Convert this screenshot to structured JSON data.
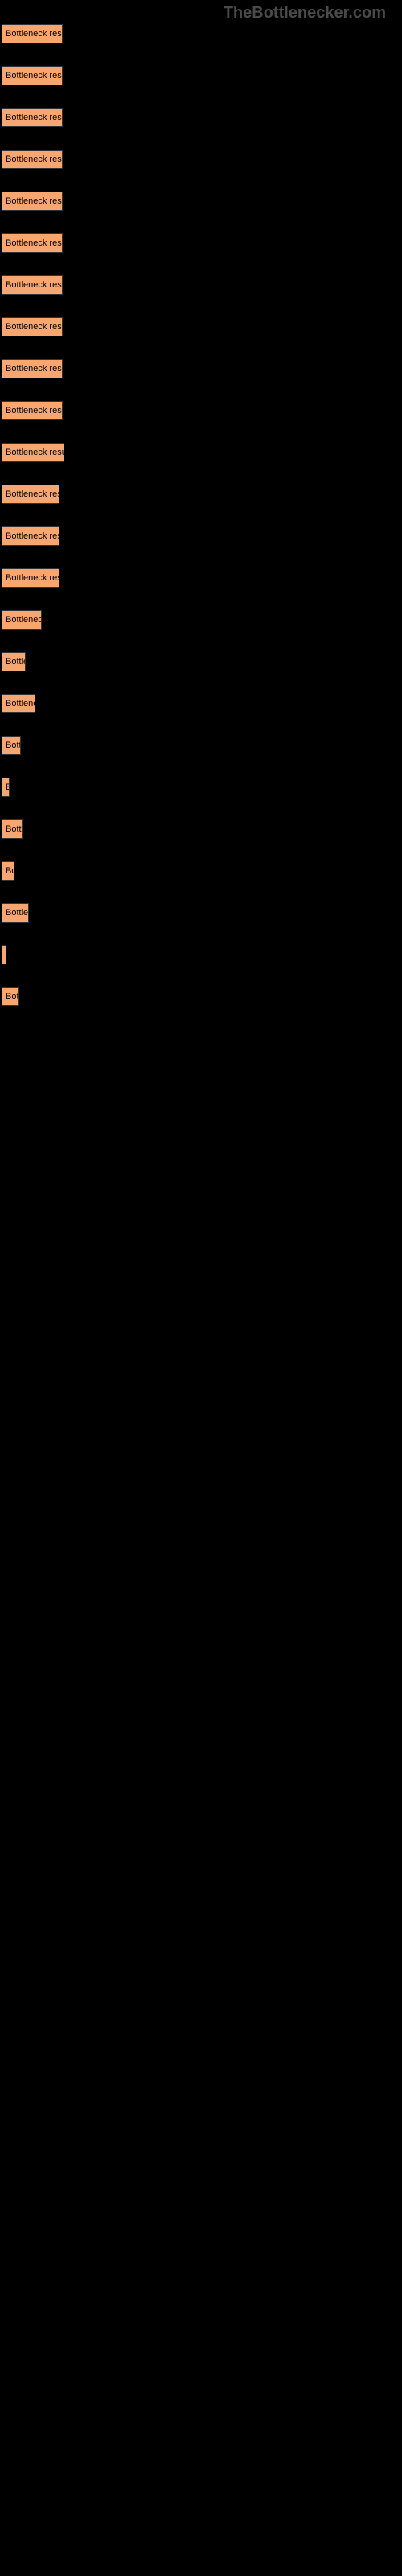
{
  "watermark": "TheBottlenecker.com",
  "chart": {
    "type": "bar",
    "bar_color": "#f8a670",
    "background_color": "#000000",
    "text_color": "#000000",
    "label_fontsize": 11,
    "bars": [
      {
        "label": "Bottleneck result",
        "width": 76
      },
      {
        "label": "Bottleneck result",
        "width": 76
      },
      {
        "label": "Bottleneck result",
        "width": 76
      },
      {
        "label": "Bottleneck result",
        "width": 76
      },
      {
        "label": "Bottleneck result",
        "width": 76
      },
      {
        "label": "Bottleneck result",
        "width": 76
      },
      {
        "label": "Bottleneck result",
        "width": 76
      },
      {
        "label": "Bottleneck result",
        "width": 76
      },
      {
        "label": "Bottleneck result",
        "width": 76
      },
      {
        "label": "Bottleneck result",
        "width": 76
      },
      {
        "label": "Bottleneck result",
        "width": 78
      },
      {
        "label": "Bottleneck resu",
        "width": 72
      },
      {
        "label": "Bottleneck resu",
        "width": 72
      },
      {
        "label": "Bottleneck resu",
        "width": 72
      },
      {
        "label": "Bottleneck",
        "width": 50
      },
      {
        "label": "Bottler",
        "width": 30
      },
      {
        "label": "Bottleneck",
        "width": 42
      },
      {
        "label": "Bottl",
        "width": 24
      },
      {
        "label": "B",
        "width": 10
      },
      {
        "label": "Bottl",
        "width": 26
      },
      {
        "label": "Bo",
        "width": 16
      },
      {
        "label": "Bottlen",
        "width": 34
      },
      {
        "label": "",
        "width": 4
      },
      {
        "label": "Bott",
        "width": 22
      }
    ]
  }
}
